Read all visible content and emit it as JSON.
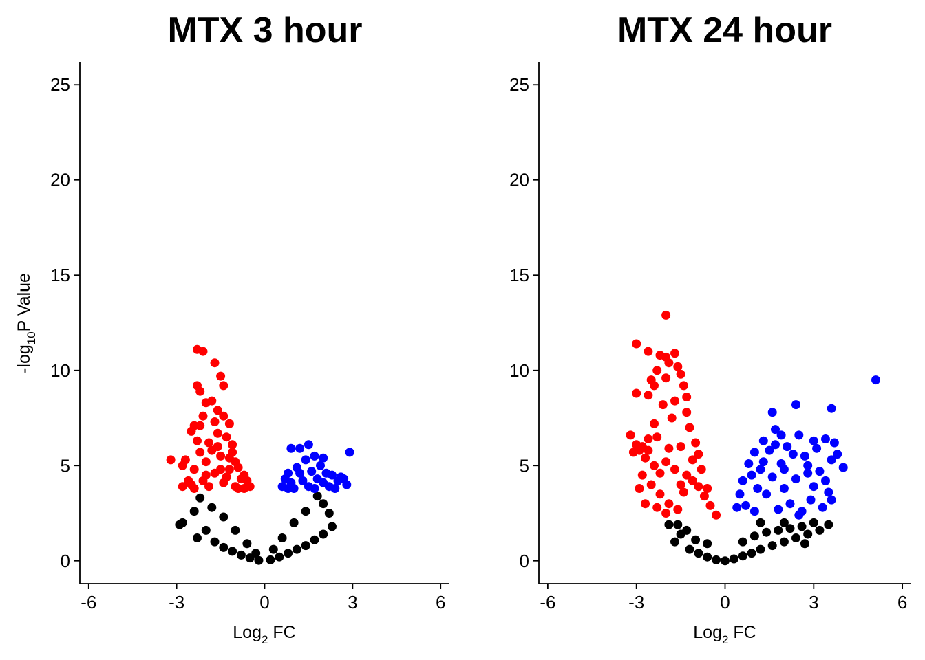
{
  "chart_data": [
    {
      "type": "scatter",
      "title": "MTX 3 hour",
      "xlabel": {
        "prefix": "Log",
        "sub": "2",
        "suffix": " FC"
      },
      "ylabel": {
        "prefix": "-log",
        "sub": "10",
        "suffix": "P Value"
      },
      "xlim": [
        -6.3,
        6.3
      ],
      "ylim": [
        -1.2,
        26.2
      ],
      "xticks": [
        -6,
        -3,
        0,
        3,
        6
      ],
      "xtick_labels": [
        "-6",
        "-3",
        "0",
        "3",
        "6"
      ],
      "yticks": [
        0,
        5,
        10,
        15,
        20,
        25
      ],
      "ytick_labels": [
        "0",
        "5",
        "10",
        "15",
        "20",
        "25"
      ],
      "grid": false,
      "colors": {
        "down": "#ff0000",
        "up": "#0000ff",
        "ns": "#000000"
      },
      "series": [
        {
          "group": "down",
          "color": "#ff0000",
          "points": [
            [
              -2.3,
              11.1
            ],
            [
              -2.1,
              11.0
            ],
            [
              -1.7,
              10.4
            ],
            [
              -1.5,
              9.7
            ],
            [
              -2.3,
              9.2
            ],
            [
              -2.2,
              8.9
            ],
            [
              -1.4,
              9.2
            ],
            [
              -1.8,
              8.4
            ],
            [
              -2.0,
              8.3
            ],
            [
              -1.6,
              7.9
            ],
            [
              -2.1,
              7.6
            ],
            [
              -1.4,
              7.6
            ],
            [
              -2.2,
              7.1
            ],
            [
              -2.4,
              7.1
            ],
            [
              -1.7,
              7.3
            ],
            [
              -1.2,
              7.2
            ],
            [
              -3.2,
              5.3
            ],
            [
              -2.7,
              5.3
            ],
            [
              -2.8,
              5.0
            ],
            [
              -2.4,
              4.8
            ],
            [
              -2.3,
              6.3
            ],
            [
              -1.9,
              6.2
            ],
            [
              -1.6,
              6.0
            ],
            [
              -1.3,
              6.5
            ],
            [
              -1.1,
              5.7
            ],
            [
              -0.9,
              4.9
            ],
            [
              -0.7,
              4.5
            ],
            [
              -0.6,
              4.2
            ],
            [
              -0.5,
              3.9
            ],
            [
              -1.0,
              5.2
            ],
            [
              -1.5,
              5.5
            ],
            [
              -2.0,
              5.2
            ],
            [
              -2.6,
              4.2
            ],
            [
              -2.8,
              3.9
            ],
            [
              -2.5,
              4.0
            ],
            [
              -2.0,
              4.5
            ],
            [
              -1.8,
              5.8
            ],
            [
              -1.2,
              4.8
            ],
            [
              -0.8,
              4.3
            ],
            [
              -1.4,
              4.1
            ],
            [
              -1.7,
              4.6
            ],
            [
              -2.2,
              5.7
            ],
            [
              -2.5,
              6.8
            ],
            [
              -1.1,
              6.1
            ],
            [
              -0.9,
              3.8
            ],
            [
              -1.6,
              6.7
            ],
            [
              -2.1,
              4.2
            ],
            [
              -1.3,
              4.4
            ],
            [
              -1.0,
              3.9
            ],
            [
              -0.7,
              3.8
            ],
            [
              -2.4,
              3.8
            ],
            [
              -1.9,
              3.9
            ],
            [
              -1.5,
              4.8
            ],
            [
              -1.2,
              5.4
            ]
          ]
        },
        {
          "group": "up",
          "color": "#0000ff",
          "points": [
            [
              1.5,
              6.1
            ],
            [
              2.9,
              5.7
            ],
            [
              1.2,
              5.9
            ],
            [
              0.9,
              5.9
            ],
            [
              1.7,
              5.5
            ],
            [
              2.0,
              5.4
            ],
            [
              1.4,
              5.3
            ],
            [
              1.9,
              5.0
            ],
            [
              1.1,
              4.9
            ],
            [
              2.3,
              4.5
            ],
            [
              2.6,
              4.4
            ],
            [
              2.7,
              4.3
            ],
            [
              2.8,
              4.0
            ],
            [
              2.5,
              4.2
            ],
            [
              0.8,
              4.6
            ],
            [
              0.7,
              4.3
            ],
            [
              0.6,
              3.9
            ],
            [
              1.3,
              4.2
            ],
            [
              2.0,
              4.1
            ],
            [
              1.6,
              4.7
            ],
            [
              2.2,
              3.9
            ],
            [
              1.0,
              3.8
            ],
            [
              0.9,
              4.1
            ],
            [
              1.8,
              4.3
            ],
            [
              2.4,
              3.8
            ],
            [
              1.2,
              4.6
            ],
            [
              1.5,
              3.9
            ],
            [
              0.8,
              3.8
            ],
            [
              2.1,
              4.6
            ],
            [
              1.7,
              3.8
            ]
          ]
        },
        {
          "group": "ns",
          "color": "#000000",
          "points": [
            [
              -2.9,
              1.9
            ],
            [
              -2.8,
              2.0
            ],
            [
              -2.3,
              1.2
            ],
            [
              -2.0,
              1.6
            ],
            [
              -1.7,
              1.0
            ],
            [
              -1.4,
              0.7
            ],
            [
              -1.1,
              0.5
            ],
            [
              -0.8,
              0.3
            ],
            [
              -0.5,
              0.15
            ],
            [
              -0.2,
              0.02
            ],
            [
              0.2,
              0.05
            ],
            [
              0.5,
              0.2
            ],
            [
              0.8,
              0.4
            ],
            [
              1.1,
              0.6
            ],
            [
              1.4,
              0.8
            ],
            [
              1.7,
              1.1
            ],
            [
              2.0,
              1.4
            ],
            [
              2.3,
              1.8
            ],
            [
              2.2,
              2.5
            ],
            [
              2.0,
              3.0
            ],
            [
              1.8,
              3.4
            ],
            [
              -2.2,
              3.3
            ],
            [
              -1.8,
              2.8
            ],
            [
              -1.4,
              2.3
            ],
            [
              -1.0,
              1.6
            ],
            [
              -0.6,
              0.9
            ],
            [
              0.6,
              1.2
            ],
            [
              1.0,
              2.0
            ],
            [
              1.4,
              2.6
            ],
            [
              -2.4,
              2.6
            ],
            [
              -0.3,
              0.4
            ],
            [
              0.3,
              0.6
            ]
          ]
        }
      ]
    },
    {
      "type": "scatter",
      "title": "MTX 24 hour",
      "xlabel": {
        "prefix": "Log",
        "sub": "2",
        "suffix": " FC"
      },
      "ylabel": {
        "prefix": "",
        "sub": "",
        "suffix": ""
      },
      "xlim": [
        -6.3,
        6.3
      ],
      "ylim": [
        -1.2,
        26.2
      ],
      "xticks": [
        -6,
        -3,
        0,
        3,
        6
      ],
      "xtick_labels": [
        "-6",
        "-3",
        "0",
        "3",
        "6"
      ],
      "yticks": [
        0,
        5,
        10,
        15,
        20,
        25
      ],
      "ytick_labels": [
        "0",
        "5",
        "10",
        "15",
        "20",
        "25"
      ],
      "grid": false,
      "colors": {
        "down": "#ff0000",
        "up": "#0000ff",
        "ns": "#000000"
      },
      "series": [
        {
          "group": "down",
          "color": "#ff0000",
          "points": [
            [
              -2.0,
              12.9
            ],
            [
              -3.0,
              11.4
            ],
            [
              -2.6,
              11.0
            ],
            [
              -1.7,
              10.9
            ],
            [
              -2.2,
              10.8
            ],
            [
              -2.0,
              10.7
            ],
            [
              -1.9,
              10.4
            ],
            [
              -1.6,
              10.2
            ],
            [
              -2.3,
              10.0
            ],
            [
              -1.5,
              9.8
            ],
            [
              -2.5,
              9.5
            ],
            [
              -1.4,
              9.2
            ],
            [
              -3.0,
              8.8
            ],
            [
              -2.6,
              8.7
            ],
            [
              -1.3,
              8.6
            ],
            [
              -3.2,
              6.6
            ],
            [
              -3.0,
              6.1
            ],
            [
              -2.8,
              6.0
            ],
            [
              -2.9,
              5.8
            ],
            [
              -3.1,
              5.7
            ],
            [
              -2.7,
              5.4
            ],
            [
              -2.4,
              5.0
            ],
            [
              -2.0,
              5.2
            ],
            [
              -1.7,
              4.8
            ],
            [
              -1.3,
              4.5
            ],
            [
              -1.1,
              4.2
            ],
            [
              -0.9,
              3.9
            ],
            [
              -0.7,
              3.4
            ],
            [
              -0.5,
              2.9
            ],
            [
              -0.3,
              2.4
            ],
            [
              -2.5,
              4.0
            ],
            [
              -2.2,
              3.5
            ],
            [
              -1.9,
              3.0
            ],
            [
              -1.6,
              2.7
            ],
            [
              -2.7,
              3.0
            ],
            [
              -2.9,
              3.8
            ],
            [
              -2.8,
              4.5
            ],
            [
              -1.5,
              6.0
            ],
            [
              -1.2,
              7.0
            ],
            [
              -1.0,
              6.2
            ],
            [
              -1.8,
              7.5
            ],
            [
              -2.1,
              8.2
            ],
            [
              -2.4,
              7.2
            ],
            [
              -2.3,
              6.5
            ],
            [
              -2.6,
              6.4
            ],
            [
              -1.1,
              5.3
            ],
            [
              -0.8,
              4.8
            ],
            [
              -0.6,
              3.8
            ],
            [
              -1.4,
              3.6
            ],
            [
              -2.0,
              2.5
            ],
            [
              -1.7,
              8.4
            ],
            [
              -2.4,
              9.2
            ],
            [
              -1.9,
              5.9
            ],
            [
              -2.2,
              4.6
            ],
            [
              -1.5,
              4.0
            ],
            [
              -2.6,
              5.8
            ],
            [
              -0.9,
              5.6
            ],
            [
              -1.3,
              7.8
            ],
            [
              -2.0,
              9.6
            ],
            [
              -2.3,
              2.8
            ]
          ]
        },
        {
          "group": "up",
          "color": "#0000ff",
          "points": [
            [
              5.1,
              9.5
            ],
            [
              2.4,
              8.2
            ],
            [
              3.6,
              8.0
            ],
            [
              1.6,
              7.8
            ],
            [
              2.5,
              6.6
            ],
            [
              1.7,
              6.9
            ],
            [
              1.9,
              6.6
            ],
            [
              1.3,
              6.3
            ],
            [
              3.0,
              6.3
            ],
            [
              3.4,
              6.4
            ],
            [
              2.1,
              6.0
            ],
            [
              3.7,
              6.2
            ],
            [
              4.0,
              4.9
            ],
            [
              3.8,
              5.6
            ],
            [
              1.0,
              5.7
            ],
            [
              0.8,
              5.1
            ],
            [
              0.6,
              4.2
            ],
            [
              0.5,
              3.5
            ],
            [
              0.4,
              2.8
            ],
            [
              1.2,
              4.8
            ],
            [
              1.6,
              4.4
            ],
            [
              2.0,
              4.8
            ],
            [
              2.4,
              4.3
            ],
            [
              2.8,
              4.6
            ],
            [
              3.2,
              4.7
            ],
            [
              3.5,
              3.6
            ],
            [
              3.3,
              2.8
            ],
            [
              2.9,
              3.2
            ],
            [
              2.6,
              2.6
            ],
            [
              2.2,
              3.0
            ],
            [
              1.8,
              2.7
            ],
            [
              1.4,
              3.5
            ],
            [
              1.1,
              3.8
            ],
            [
              0.9,
              4.5
            ],
            [
              1.5,
              5.8
            ],
            [
              2.7,
              5.5
            ],
            [
              3.1,
              5.9
            ],
            [
              3.6,
              5.3
            ],
            [
              1.3,
              5.2
            ],
            [
              2.3,
              5.6
            ],
            [
              2.0,
              3.8
            ],
            [
              3.0,
              3.9
            ],
            [
              0.7,
              2.9
            ],
            [
              1.7,
              6.1
            ],
            [
              3.4,
              4.2
            ],
            [
              2.5,
              2.4
            ],
            [
              1.0,
              2.6
            ],
            [
              3.6,
              3.2
            ],
            [
              2.8,
              5.0
            ],
            [
              1.9,
              5.1
            ]
          ]
        },
        {
          "group": "ns",
          "color": "#000000",
          "points": [
            [
              -1.9,
              1.9
            ],
            [
              -1.7,
              1.0
            ],
            [
              -1.5,
              1.4
            ],
            [
              -1.2,
              0.6
            ],
            [
              -0.9,
              0.4
            ],
            [
              -0.6,
              0.2
            ],
            [
              -0.3,
              0.05
            ],
            [
              0.0,
              0.0
            ],
            [
              0.3,
              0.1
            ],
            [
              0.6,
              0.25
            ],
            [
              0.9,
              0.4
            ],
            [
              1.2,
              0.6
            ],
            [
              1.6,
              0.8
            ],
            [
              2.0,
              1.0
            ],
            [
              2.4,
              1.2
            ],
            [
              2.8,
              1.4
            ],
            [
              3.2,
              1.6
            ],
            [
              3.5,
              1.9
            ],
            [
              3.0,
              2.0
            ],
            [
              2.6,
              1.8
            ],
            [
              2.2,
              1.7
            ],
            [
              1.8,
              1.6
            ],
            [
              1.4,
              1.5
            ],
            [
              1.0,
              1.3
            ],
            [
              0.6,
              1.0
            ],
            [
              -1.3,
              1.6
            ],
            [
              -1.0,
              1.1
            ],
            [
              -0.6,
              0.9
            ],
            [
              -1.6,
              1.9
            ],
            [
              1.2,
              2.0
            ],
            [
              2.0,
              2.0
            ],
            [
              2.7,
              0.9
            ]
          ]
        }
      ]
    }
  ]
}
